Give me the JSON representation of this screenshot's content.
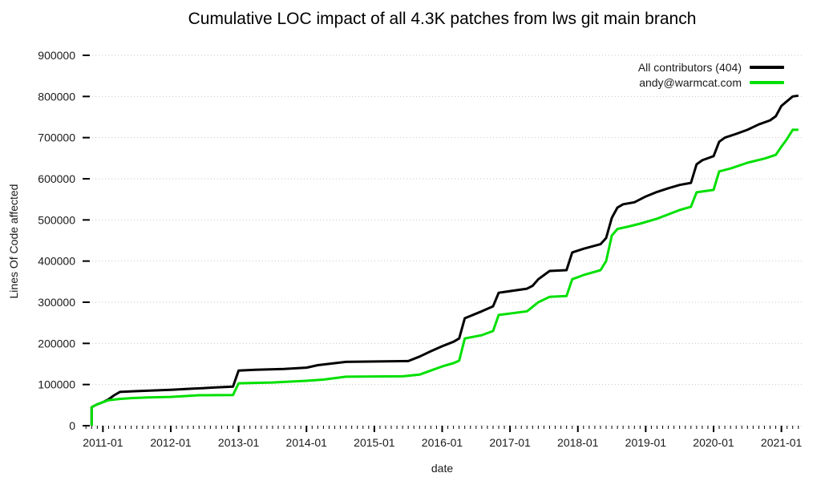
{
  "chart_data": {
    "type": "line",
    "title": "Cumulative LOC impact of all 4.3K patches from lws git main branch",
    "xlabel": "date",
    "ylabel": "Lines Of Code affected",
    "grid": "horizontal-dotted",
    "legend_position": "top-right",
    "xlim": [
      2010.7,
      2021.3
    ],
    "ylim": [
      0,
      900000
    ],
    "yticks": [
      0,
      100000,
      200000,
      300000,
      400000,
      500000,
      600000,
      700000,
      800000,
      900000
    ],
    "ytick_labels": [
      "0",
      "100000",
      "200000",
      "300000",
      "400000",
      "500000",
      "600000",
      "700000",
      "800000",
      "900000"
    ],
    "xticks": [
      2011,
      2012,
      2013,
      2014,
      2015,
      2016,
      2017,
      2018,
      2019,
      2020,
      2021
    ],
    "xtick_labels": [
      "2011-01",
      "2012-01",
      "2013-01",
      "2014-01",
      "2015-01",
      "2016-01",
      "2017-01",
      "2018-01",
      "2019-01",
      "2020-01",
      "2021-01"
    ],
    "minor_xticks": "monthly",
    "series": [
      {
        "name": "All contributors (404)",
        "color": "#000000",
        "points": [
          [
            "2010-11",
            0
          ],
          [
            "2010-11",
            45000
          ],
          [
            "2010-12",
            52000
          ],
          [
            "2011-01",
            57000
          ],
          [
            "2011-02",
            64000
          ],
          [
            "2011-03",
            74000
          ],
          [
            "2011-04",
            82000
          ],
          [
            "2011-07",
            84000
          ],
          [
            "2012-01",
            87000
          ],
          [
            "2012-05",
            90000
          ],
          [
            "2012-09",
            93000
          ],
          [
            "2012-12",
            95000
          ],
          [
            "2013-01",
            134000
          ],
          [
            "2013-04",
            136000
          ],
          [
            "2013-09",
            138000
          ],
          [
            "2014-01",
            141000
          ],
          [
            "2014-03",
            147000
          ],
          [
            "2014-08",
            155000
          ],
          [
            "2015-07",
            157000
          ],
          [
            "2015-09",
            168000
          ],
          [
            "2015-11",
            181000
          ],
          [
            "2016-01",
            193000
          ],
          [
            "2016-03",
            204000
          ],
          [
            "2016-04",
            212000
          ],
          [
            "2016-05",
            261000
          ],
          [
            "2016-08",
            278000
          ],
          [
            "2016-10",
            290000
          ],
          [
            "2016-11",
            323000
          ],
          [
            "2017-04",
            333000
          ],
          [
            "2017-05",
            340000
          ],
          [
            "2017-06",
            356000
          ],
          [
            "2017-08",
            376000
          ],
          [
            "2017-11",
            378000
          ],
          [
            "2017-12",
            421000
          ],
          [
            "2018-02",
            430000
          ],
          [
            "2018-05",
            441000
          ],
          [
            "2018-06",
            456000
          ],
          [
            "2018-07",
            505000
          ],
          [
            "2018-08",
            530000
          ],
          [
            "2018-09",
            538000
          ],
          [
            "2018-11",
            543000
          ],
          [
            "2019-01",
            557000
          ],
          [
            "2019-03",
            568000
          ],
          [
            "2019-05",
            577000
          ],
          [
            "2019-07",
            585000
          ],
          [
            "2019-09",
            590000
          ],
          [
            "2019-10",
            635000
          ],
          [
            "2019-11",
            645000
          ],
          [
            "2020-01",
            655000
          ],
          [
            "2020-02",
            690000
          ],
          [
            "2020-03",
            700000
          ],
          [
            "2020-05",
            709000
          ],
          [
            "2020-07",
            719000
          ],
          [
            "2020-09",
            732000
          ],
          [
            "2020-11",
            742000
          ],
          [
            "2020-12",
            752000
          ],
          [
            "2021-01",
            777000
          ],
          [
            "2021-03",
            800000
          ],
          [
            "2021-04",
            802000
          ]
        ]
      },
      {
        "name": "andy@warmcat.com",
        "color": "#00e000",
        "points": [
          [
            "2010-11",
            0
          ],
          [
            "2010-11",
            45000
          ],
          [
            "2010-12",
            52000
          ],
          [
            "2011-01",
            57000
          ],
          [
            "2011-02",
            62000
          ],
          [
            "2011-04",
            65000
          ],
          [
            "2011-06",
            67000
          ],
          [
            "2011-09",
            68500
          ],
          [
            "2012-01",
            70000
          ],
          [
            "2012-06",
            74000
          ],
          [
            "2012-12",
            74500
          ],
          [
            "2013-01",
            103000
          ],
          [
            "2013-07",
            105000
          ],
          [
            "2014-01",
            109000
          ],
          [
            "2014-04",
            112000
          ],
          [
            "2014-08",
            119000
          ],
          [
            "2015-06",
            120000
          ],
          [
            "2015-09",
            124000
          ],
          [
            "2015-11",
            134000
          ],
          [
            "2016-01",
            144000
          ],
          [
            "2016-03",
            152000
          ],
          [
            "2016-04",
            158000
          ],
          [
            "2016-05",
            212000
          ],
          [
            "2016-08",
            220000
          ],
          [
            "2016-10",
            230000
          ],
          [
            "2016-11",
            269000
          ],
          [
            "2017-04",
            278000
          ],
          [
            "2017-06",
            300000
          ],
          [
            "2017-08",
            313000
          ],
          [
            "2017-11",
            315000
          ],
          [
            "2017-12",
            356000
          ],
          [
            "2018-02",
            366000
          ],
          [
            "2018-05",
            378000
          ],
          [
            "2018-06",
            400000
          ],
          [
            "2018-07",
            462000
          ],
          [
            "2018-08",
            478000
          ],
          [
            "2018-10",
            484000
          ],
          [
            "2018-12",
            491000
          ],
          [
            "2019-03",
            503000
          ],
          [
            "2019-07",
            524000
          ],
          [
            "2019-09",
            532000
          ],
          [
            "2019-10",
            567000
          ],
          [
            "2019-12",
            571000
          ],
          [
            "2020-01",
            573000
          ],
          [
            "2020-02",
            618000
          ],
          [
            "2020-04",
            625000
          ],
          [
            "2020-07",
            639000
          ],
          [
            "2020-10",
            649000
          ],
          [
            "2020-12",
            658000
          ],
          [
            "2021-01",
            678000
          ],
          [
            "2021-02",
            697000
          ],
          [
            "2021-03",
            719000
          ],
          [
            "2021-04",
            719000
          ]
        ]
      }
    ]
  }
}
